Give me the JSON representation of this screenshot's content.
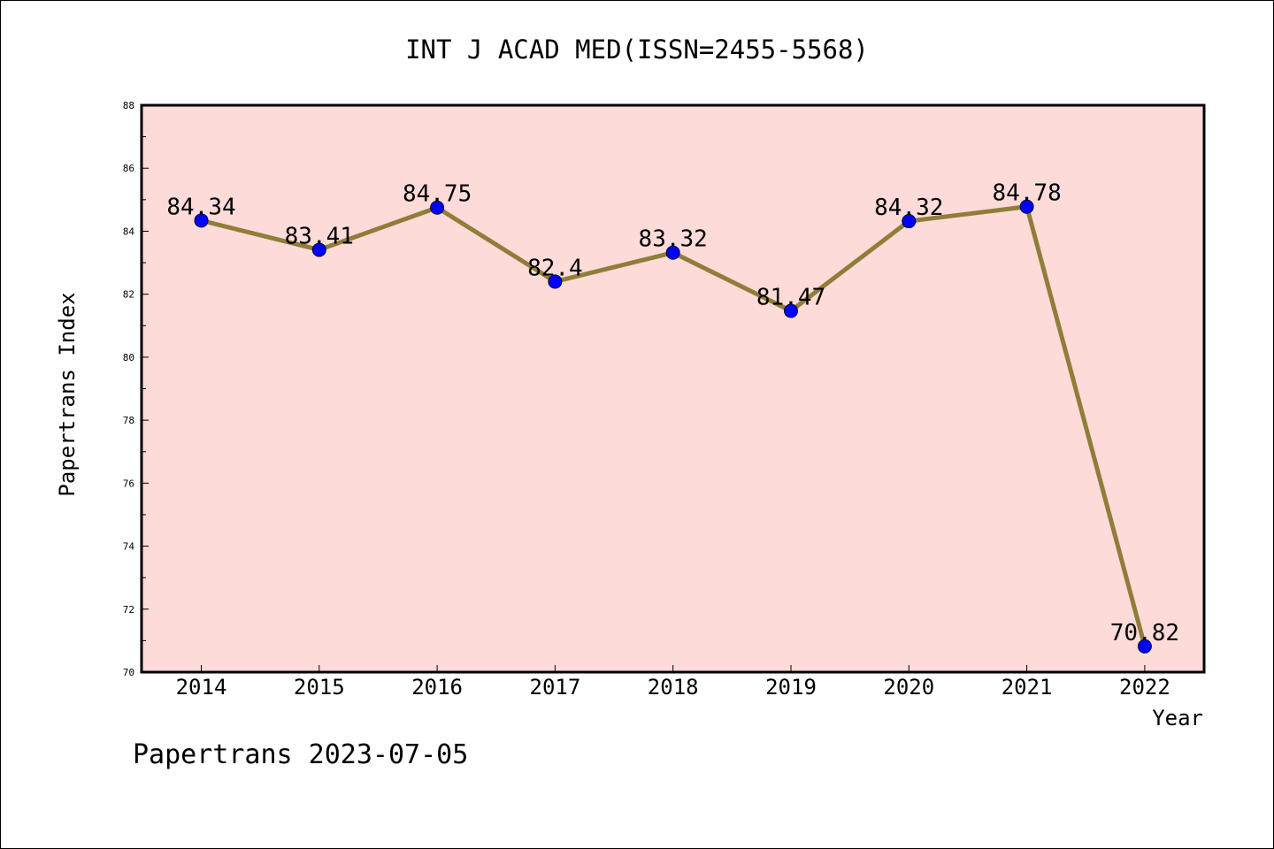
{
  "chart_data": {
    "type": "line",
    "title": "INT J ACAD MED(ISSN=2455-5568)",
    "xlabel": "Year",
    "ylabel": "Papertrans Index",
    "categories": [
      "2014",
      "2015",
      "2016",
      "2017",
      "2018",
      "2019",
      "2020",
      "2021",
      "2022"
    ],
    "series": [
      {
        "values": [
          84.34,
          83.41,
          84.75,
          82.4,
          83.32,
          81.47,
          84.32,
          84.78,
          70.82
        ],
        "labels": [
          "84.34",
          "83.41",
          "84.75",
          "82.4",
          "83.32",
          "81.47",
          "84.32",
          "84.78",
          "70.82"
        ]
      }
    ],
    "ylim": [
      70,
      88
    ],
    "yticks": [
      "70",
      "72",
      "74",
      "76",
      "78",
      "80",
      "82",
      "84",
      "86",
      "88"
    ],
    "grid": false,
    "colors": {
      "plot_background": "#fddbd8",
      "line": "#8f7d3a",
      "marker": "#0000ff"
    }
  },
  "footer": "Papertrans 2023-07-05"
}
